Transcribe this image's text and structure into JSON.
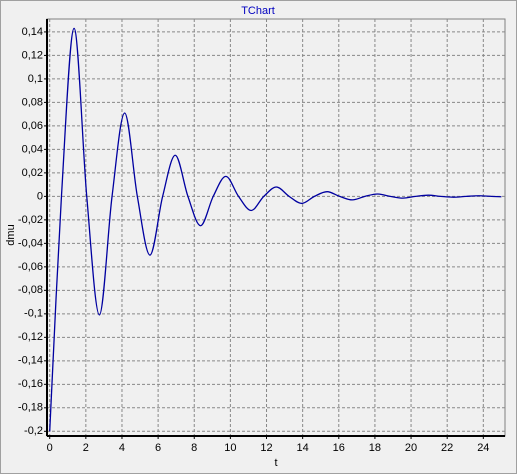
{
  "chart_data": {
    "type": "line",
    "title": "TChart",
    "xlabel": "t",
    "ylabel": "dmu",
    "series": [
      {
        "name": "dmu",
        "color": "#0000a0",
        "x": [
          0,
          0.65,
          1.35,
          2.05,
          2.75,
          3.45,
          4.15,
          4.85,
          5.55,
          6.25,
          6.95,
          7.65,
          8.35,
          9.05,
          9.75,
          10.45,
          11.15,
          11.85,
          12.55,
          13.25,
          13.95,
          14.65,
          15.35,
          16.05,
          16.75,
          17.45,
          18.15,
          18.85,
          19.55,
          20.25,
          20.95,
          21.65,
          22.35,
          23.05,
          23.75,
          24.45,
          25
        ],
        "values": [
          -0.2,
          0,
          0.143,
          0,
          -0.101,
          0,
          0.071,
          0,
          -0.05,
          0,
          0.035,
          0,
          -0.025,
          0,
          0.017,
          0,
          -0.012,
          0,
          0.008,
          0,
          -0.006,
          0,
          0.004,
          0,
          -0.003,
          0,
          0.002,
          0,
          -0.0015,
          0,
          0.001,
          0,
          -0.0007,
          0,
          0.0005,
          0,
          -0.0003
        ]
      }
    ],
    "xlim": [
      -0.15,
      25.2
    ],
    "xticks": [
      0,
      2,
      4,
      6,
      8,
      10,
      12,
      14,
      16,
      18,
      20,
      22,
      24
    ],
    "ylim": [
      -0.204,
      0.151
    ],
    "yticks": [
      {
        "value": -0.2,
        "label": "-0,2"
      },
      {
        "value": -0.18,
        "label": "-0,18"
      },
      {
        "value": -0.16,
        "label": "-0,16"
      },
      {
        "value": -0.14,
        "label": "-0,14"
      },
      {
        "value": -0.12,
        "label": "-0,12"
      },
      {
        "value": -0.1,
        "label": "-0,1"
      },
      {
        "value": -0.08,
        "label": "-0,08"
      },
      {
        "value": -0.06,
        "label": "-0,06"
      },
      {
        "value": -0.04,
        "label": "-0,04"
      },
      {
        "value": -0.02,
        "label": "-0,02"
      },
      0,
      {
        "value": 0.02,
        "label": "0,02"
      },
      {
        "value": 0.04,
        "label": "0,04"
      },
      {
        "value": 0.06,
        "label": "0,06"
      },
      {
        "value": 0.08,
        "label": "0,08"
      },
      {
        "value": 0.1,
        "label": "0,1"
      },
      {
        "value": 0.12,
        "label": "0,12"
      },
      {
        "value": 0.14,
        "label": "0,14"
      }
    ],
    "grid": true
  }
}
